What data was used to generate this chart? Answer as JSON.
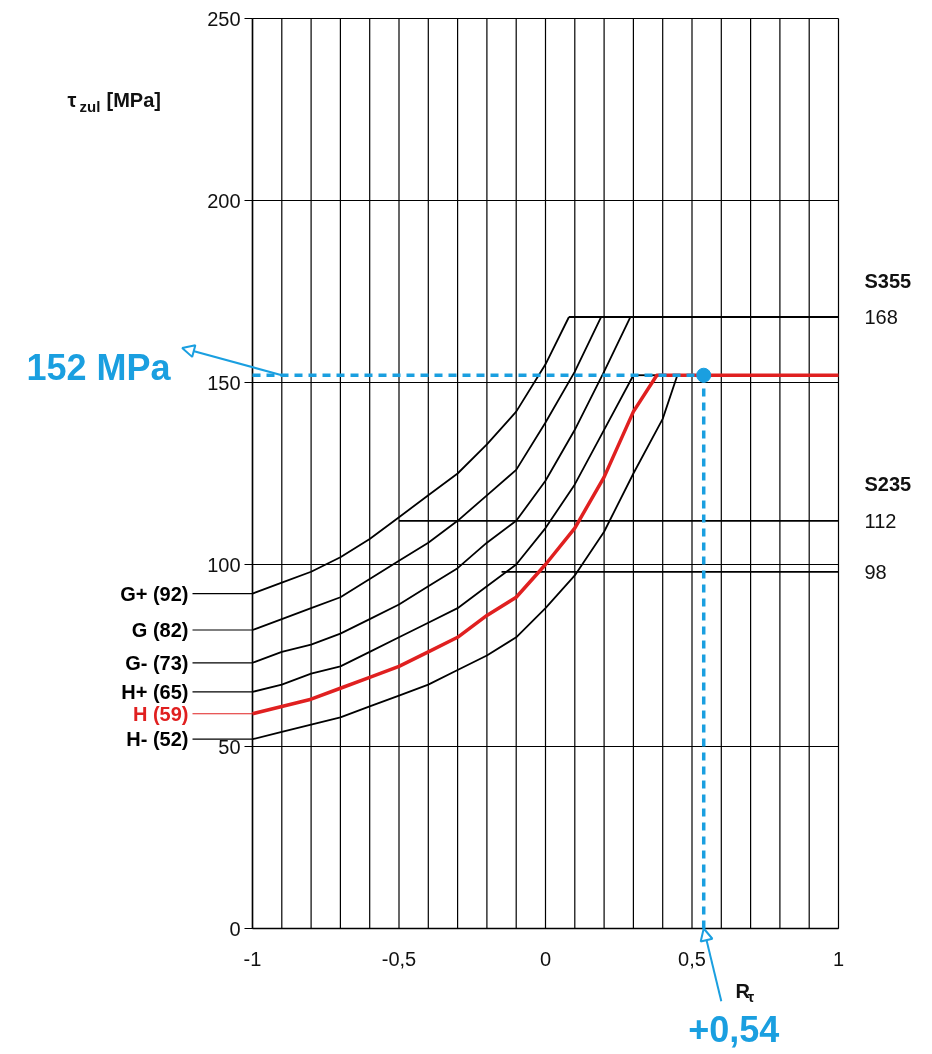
{
  "chart_data": {
    "type": "line",
    "xlim": [
      -1,
      1
    ],
    "ylim": [
      0,
      250
    ],
    "xticks": [
      -1,
      {
        "value": -0.9,
        "label": null
      },
      {
        "value": -0.8,
        "label": null
      },
      {
        "value": -0.7,
        "label": null
      },
      {
        "value": -0.6,
        "label": null
      },
      {
        "value": -0.5,
        "label": "-0,5"
      },
      {
        "value": -0.4,
        "label": null
      },
      {
        "value": -0.3,
        "label": null
      },
      {
        "value": -0.2,
        "label": null
      },
      {
        "value": -0.1,
        "label": null
      },
      0,
      {
        "value": 0.1,
        "label": null
      },
      {
        "value": 0.2,
        "label": null
      },
      {
        "value": 0.3,
        "label": null
      },
      {
        "value": 0.4,
        "label": null
      },
      {
        "value": 0.5,
        "label": "0,5"
      },
      {
        "value": 0.6,
        "label": null
      },
      {
        "value": 0.7,
        "label": null
      },
      {
        "value": 0.8,
        "label": null
      },
      {
        "value": 0.9,
        "label": null
      },
      1
    ],
    "yticks": [
      0,
      50,
      100,
      150,
      200,
      250
    ],
    "grid": true,
    "legend": "left",
    "xlabel": "R$_{τ}$",
    "ylabel": "τ$_{zul}$ [MPa]",
    "annotations": [
      {
        "text": "152 MPa",
        "x": -1,
        "y": 152
      },
      {
        "text": "+0,54",
        "x": 0.54,
        "y": 0
      }
    ],
    "series": [
      {
        "name": "S355",
        "color": "#000000",
        "x": [
          0.08,
          1
        ],
        "values": [
          168,
          168
        ],
        "value_labels": [
          null,
          "168"
        ]
      },
      {
        "color": "#000000",
        "x": [
          0.3,
          0.38
        ],
        "values": [
          152,
          152
        ],
        "value_labels": [
          null,
          null
        ]
      },
      {
        "name": "S235",
        "color": "#000000",
        "x": [
          -0.5,
          1
        ],
        "values": [
          112,
          112
        ],
        "value_labels": [
          null,
          "112"
        ]
      },
      {
        "color": "#000000",
        "x": [
          -0.15,
          1
        ],
        "values": [
          98,
          98
        ],
        "value_labels": [
          null,
          "98"
        ]
      },
      {
        "name": "G+ (92)",
        "color": "#000000",
        "x": [
          -1,
          -0.9,
          -0.8,
          -0.7,
          -0.6,
          -0.5,
          -0.4,
          -0.3,
          -0.2,
          -0.1,
          0,
          0.08
        ],
        "values": [
          92,
          95,
          98,
          102,
          107,
          113,
          119,
          125,
          133,
          142,
          155,
          168
        ]
      },
      {
        "name": "G (82)",
        "color": "#000000",
        "x": [
          -1,
          -0.9,
          -0.8,
          -0.7,
          -0.6,
          -0.5,
          -0.4,
          -0.3,
          -0.2,
          -0.1,
          0,
          0.1,
          0.19
        ],
        "values": [
          82,
          85,
          88,
          91,
          96,
          101,
          106,
          112,
          119,
          126,
          139,
          153,
          168
        ]
      },
      {
        "name": "G- (73)",
        "color": "#000000",
        "x": [
          -1,
          -0.9,
          -0.8,
          -0.7,
          -0.6,
          -0.5,
          -0.4,
          -0.3,
          -0.2,
          -0.1,
          0,
          0.1,
          0.2,
          0.29
        ],
        "values": [
          73,
          76,
          78,
          81,
          85,
          89,
          94,
          99,
          106,
          112,
          123,
          137,
          153,
          168
        ]
      },
      {
        "name": "H+ (65)",
        "color": "#000000",
        "x": [
          -1,
          -0.9,
          -0.8,
          -0.7,
          -0.6,
          -0.5,
          -0.4,
          -0.3,
          -0.2,
          -0.1,
          0,
          0.1,
          0.2,
          0.3
        ],
        "values": [
          65,
          67,
          70,
          72,
          76,
          80,
          84,
          88,
          94,
          100,
          110,
          122,
          137,
          152
        ]
      },
      {
        "name": "H- (52)",
        "color": "#000000",
        "x": [
          -1,
          -0.9,
          -0.8,
          -0.7,
          -0.6,
          -0.5,
          -0.4,
          -0.3,
          -0.2,
          -0.1,
          0,
          0.1,
          0.2,
          0.3,
          0.4,
          0.45
        ],
        "values": [
          52,
          54,
          56,
          58,
          61,
          64,
          67,
          71,
          75,
          80,
          88,
          97,
          109,
          125,
          140,
          152
        ]
      },
      {
        "name": "H (59)",
        "color": "#e02020",
        "x": [
          -1,
          -0.9,
          -0.8,
          -0.7,
          -0.6,
          -0.5,
          -0.4,
          -0.3,
          -0.2,
          -0.1,
          0,
          0.1,
          0.2,
          0.3,
          0.38,
          1
        ],
        "values": [
          59,
          61,
          63,
          66,
          69,
          72,
          76,
          80,
          86,
          91,
          100,
          110,
          124,
          142,
          152,
          152
        ]
      },
      {
        "color": "#1a9fe0",
        "line_style": "dashed",
        "x": [
          -1,
          0.54
        ],
        "values": [
          152,
          152
        ]
      },
      {
        "color": "#1a9fe0",
        "line_style": "dashed",
        "x": [
          0.54,
          0.54
        ],
        "values": [
          0,
          152
        ]
      },
      {
        "type": "scatter",
        "marker": "circle",
        "color": "#1a9fe0",
        "x": [
          0.54
        ],
        "values": [
          152
        ]
      }
    ]
  }
}
